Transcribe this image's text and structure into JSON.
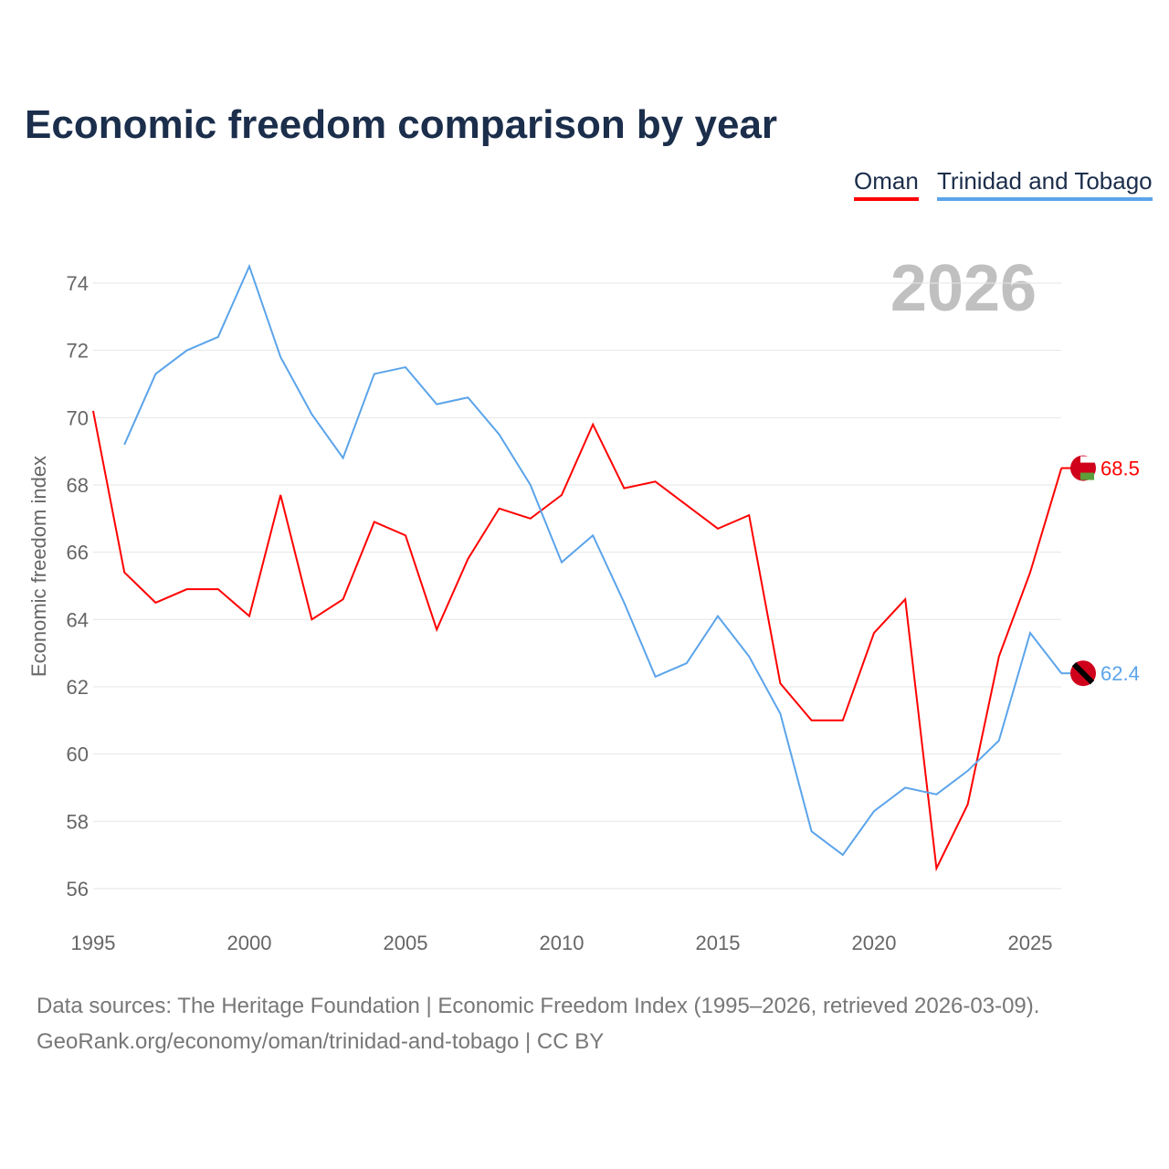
{
  "chart_data": {
    "type": "line",
    "title": "Economic freedom comparison by year",
    "ylabel": "Economic freedom index",
    "xlabel": "",
    "xlim": [
      1995,
      2026
    ],
    "ylim": [
      55,
      75.5
    ],
    "yticks": [
      56,
      58,
      60,
      62,
      64,
      66,
      68,
      70,
      72,
      74
    ],
    "xticks": [
      1995,
      2000,
      2005,
      2010,
      2015,
      2020,
      2025
    ],
    "grid": true,
    "legend_placement": "top-right",
    "year_label": "2026",
    "series": [
      {
        "name": "Oman",
        "color": "#ff0000",
        "end_label": "68.5",
        "x": [
          1995,
          1996,
          1997,
          1998,
          1999,
          2000,
          2001,
          2002,
          2003,
          2004,
          2005,
          2006,
          2007,
          2008,
          2009,
          2010,
          2011,
          2012,
          2013,
          2014,
          2015,
          2016,
          2017,
          2018,
          2019,
          2020,
          2021,
          2022,
          2023,
          2024,
          2025,
          2026
        ],
        "values": [
          70.2,
          65.4,
          64.5,
          64.9,
          64.9,
          64.1,
          67.7,
          64.0,
          64.6,
          66.9,
          66.5,
          63.7,
          65.8,
          67.3,
          67.0,
          67.7,
          69.8,
          67.9,
          68.1,
          67.4,
          66.7,
          67.1,
          62.1,
          61.0,
          61.0,
          63.6,
          64.6,
          56.6,
          58.5,
          62.9,
          65.4,
          68.5
        ]
      },
      {
        "name": "Trinidad and Tobago",
        "color": "#5ba4ea",
        "end_label": "62.4",
        "x": [
          1996,
          1997,
          1998,
          1999,
          2000,
          2001,
          2002,
          2003,
          2004,
          2005,
          2006,
          2007,
          2008,
          2009,
          2010,
          2011,
          2012,
          2013,
          2014,
          2015,
          2016,
          2017,
          2018,
          2019,
          2020,
          2021,
          2022,
          2023,
          2024,
          2025,
          2026
        ],
        "values": [
          69.2,
          71.3,
          72.0,
          72.4,
          74.5,
          71.8,
          70.1,
          68.8,
          71.3,
          71.5,
          70.4,
          70.6,
          69.5,
          68.0,
          65.7,
          66.5,
          64.5,
          62.3,
          62.7,
          64.1,
          62.9,
          61.2,
          57.7,
          57.0,
          58.3,
          59.0,
          58.8,
          59.5,
          60.4,
          63.6,
          62.4
        ]
      }
    ]
  },
  "footer": {
    "line1": "Data sources: The Heritage Foundation | Economic Freedom Index (1995–2026, retrieved 2026-03-09).",
    "line2": "GeoRank.org/economy/oman/trinidad-and-tobago | CC BY"
  }
}
